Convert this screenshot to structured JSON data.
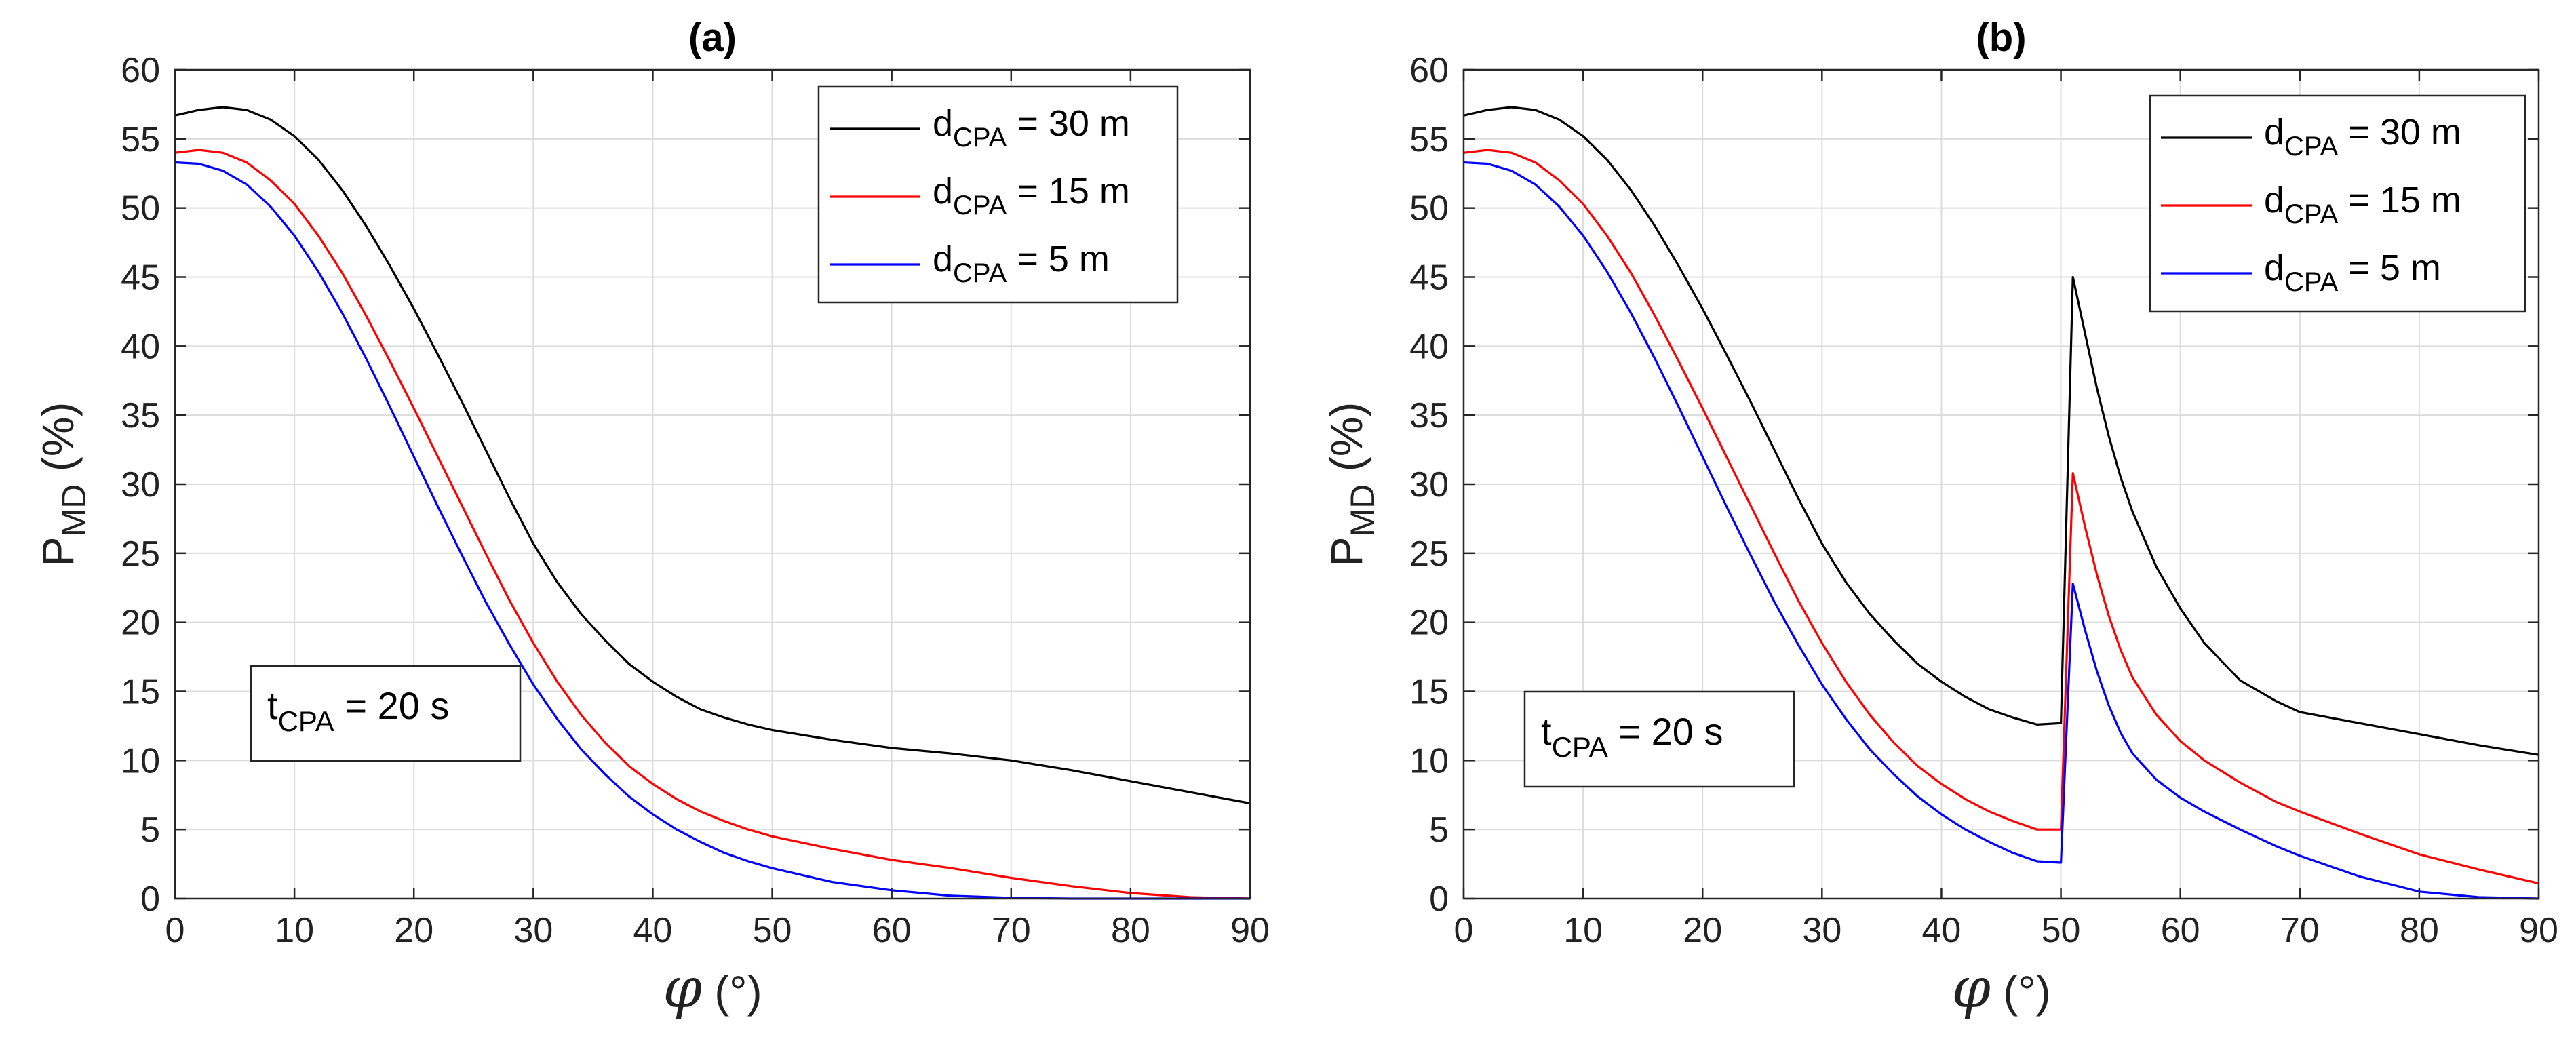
{
  "chart_data": [
    {
      "type": "line",
      "panel": "(a)",
      "title": "(a)",
      "xlabel_symbol": "φ",
      "xlabel_unit": "(°)",
      "ylabel_main": "P",
      "ylabel_sub": "MD",
      "ylabel_unit": "(%)",
      "xlim": [
        0,
        90
      ],
      "ylim": [
        0,
        60
      ],
      "xticks": [
        0,
        10,
        20,
        30,
        40,
        50,
        60,
        70,
        80,
        90
      ],
      "yticks": [
        0,
        5,
        10,
        15,
        20,
        25,
        30,
        35,
        40,
        45,
        50,
        55,
        60
      ],
      "grid": true,
      "legend_position": "top-right",
      "annotation": {
        "main": "t",
        "sub": "CPA",
        "rest": " = 20 s",
        "position": "lower-left"
      },
      "series": [
        {
          "name": "d_CPA = 30 m",
          "label_main": "d",
          "label_sub": "CPA",
          "label_rest": " = 30 m",
          "color": "#000000",
          "x": [
            0,
            2,
            4,
            6,
            8,
            10,
            12,
            14,
            16,
            18,
            20,
            22,
            24,
            26,
            28,
            30,
            32,
            34,
            36,
            38,
            40,
            42,
            44,
            46,
            48,
            50,
            55,
            60,
            65,
            70,
            75,
            80,
            85,
            90
          ],
          "y": [
            56.7,
            57.1,
            57.3,
            57.1,
            56.4,
            55.2,
            53.5,
            51.3,
            48.7,
            45.8,
            42.7,
            39.4,
            36.0,
            32.5,
            29.0,
            25.7,
            22.9,
            20.6,
            18.7,
            17.0,
            15.7,
            14.6,
            13.7,
            13.1,
            12.6,
            12.2,
            11.5,
            10.9,
            10.5,
            10.0,
            9.3,
            8.5,
            7.7,
            6.9
          ]
        },
        {
          "name": "d_CPA = 15 m",
          "label_main": "d",
          "label_sub": "CPA",
          "label_rest": " = 15 m",
          "color": "#ff0000",
          "x": [
            0,
            2,
            4,
            6,
            8,
            10,
            12,
            14,
            16,
            18,
            20,
            22,
            24,
            26,
            28,
            30,
            32,
            34,
            36,
            38,
            40,
            42,
            44,
            46,
            48,
            50,
            55,
            60,
            65,
            70,
            75,
            80,
            85,
            90
          ],
          "y": [
            54.0,
            54.2,
            54.0,
            53.3,
            52.0,
            50.3,
            48.0,
            45.3,
            42.2,
            38.9,
            35.5,
            32.0,
            28.5,
            25.0,
            21.6,
            18.5,
            15.7,
            13.3,
            11.3,
            9.6,
            8.3,
            7.2,
            6.3,
            5.6,
            5.0,
            4.5,
            3.6,
            2.8,
            2.2,
            1.5,
            0.9,
            0.4,
            0.1,
            0.0
          ]
        },
        {
          "name": "d_CPA = 5 m",
          "label_main": "d",
          "label_sub": "CPA",
          "label_rest": " = 5 m",
          "color": "#0000ff",
          "x": [
            0,
            2,
            4,
            6,
            8,
            10,
            12,
            14,
            16,
            18,
            20,
            22,
            24,
            26,
            28,
            30,
            32,
            34,
            36,
            38,
            40,
            42,
            44,
            46,
            48,
            50,
            55,
            60,
            65,
            70,
            75,
            80,
            85,
            90
          ],
          "y": [
            53.3,
            53.2,
            52.7,
            51.7,
            50.1,
            48.0,
            45.4,
            42.4,
            39.1,
            35.6,
            32.0,
            28.4,
            24.9,
            21.5,
            18.4,
            15.5,
            13.0,
            10.8,
            9.0,
            7.4,
            6.1,
            5.0,
            4.1,
            3.3,
            2.7,
            2.2,
            1.2,
            0.6,
            0.2,
            0.05,
            0.0,
            0.0,
            0.0,
            0.0
          ]
        }
      ]
    },
    {
      "type": "line",
      "panel": "(b)",
      "title": "(b)",
      "xlabel_symbol": "φ",
      "xlabel_unit": "(°)",
      "ylabel_main": "P",
      "ylabel_sub": "MD",
      "ylabel_unit": "(%)",
      "xlim": [
        0,
        90
      ],
      "ylim": [
        0,
        60
      ],
      "xticks": [
        0,
        10,
        20,
        30,
        40,
        50,
        60,
        70,
        80,
        90
      ],
      "yticks": [
        0,
        5,
        10,
        15,
        20,
        25,
        30,
        35,
        40,
        45,
        50,
        55,
        60
      ],
      "grid": true,
      "legend_position": "top-right",
      "annotation": {
        "main": "t",
        "sub": "CPA",
        "rest": " = 20 s",
        "position": "lower-left"
      },
      "series": [
        {
          "name": "d_CPA = 30 m",
          "label_main": "d",
          "label_sub": "CPA",
          "label_rest": " = 30 m",
          "color": "#000000",
          "x": [
            0,
            2,
            4,
            6,
            8,
            10,
            12,
            14,
            16,
            18,
            20,
            22,
            24,
            26,
            28,
            30,
            32,
            34,
            36,
            38,
            40,
            42,
            44,
            46,
            48,
            50,
            51,
            52,
            53,
            54,
            55,
            56,
            58,
            60,
            62,
            65,
            68,
            70,
            75,
            80,
            85,
            90
          ],
          "y": [
            56.7,
            57.1,
            57.3,
            57.1,
            56.4,
            55.2,
            53.5,
            51.3,
            48.7,
            45.8,
            42.7,
            39.4,
            36.0,
            32.5,
            29.0,
            25.7,
            22.9,
            20.6,
            18.7,
            17.0,
            15.7,
            14.6,
            13.7,
            13.1,
            12.6,
            12.7,
            45.0,
            41.0,
            37.0,
            33.5,
            30.5,
            28.0,
            24.0,
            21.0,
            18.5,
            15.8,
            14.3,
            13.5,
            12.7,
            11.9,
            11.1,
            10.4
          ]
        },
        {
          "name": "d_CPA = 15 m",
          "label_main": "d",
          "label_sub": "CPA",
          "label_rest": " = 15 m",
          "color": "#ff0000",
          "x": [
            0,
            2,
            4,
            6,
            8,
            10,
            12,
            14,
            16,
            18,
            20,
            22,
            24,
            26,
            28,
            30,
            32,
            34,
            36,
            38,
            40,
            42,
            44,
            46,
            48,
            50,
            51,
            52,
            53,
            54,
            55,
            56,
            58,
            60,
            62,
            65,
            68,
            70,
            75,
            80,
            85,
            90
          ],
          "y": [
            54.0,
            54.2,
            54.0,
            53.3,
            52.0,
            50.3,
            48.0,
            45.3,
            42.2,
            38.9,
            35.5,
            32.0,
            28.5,
            25.0,
            21.6,
            18.5,
            15.7,
            13.3,
            11.3,
            9.6,
            8.3,
            7.2,
            6.3,
            5.6,
            5.0,
            5.0,
            30.8,
            27.0,
            23.5,
            20.5,
            18.0,
            16.0,
            13.3,
            11.4,
            10.0,
            8.4,
            7.0,
            6.3,
            4.7,
            3.2,
            2.1,
            1.1
          ]
        },
        {
          "name": "d_CPA = 5 m",
          "label_main": "d",
          "label_sub": "CPA",
          "label_rest": " = 5 m",
          "color": "#0000ff",
          "x": [
            0,
            2,
            4,
            6,
            8,
            10,
            12,
            14,
            16,
            18,
            20,
            22,
            24,
            26,
            28,
            30,
            32,
            34,
            36,
            38,
            40,
            42,
            44,
            46,
            48,
            50,
            51,
            52,
            53,
            54,
            55,
            56,
            58,
            60,
            62,
            65,
            68,
            70,
            75,
            80,
            85,
            90
          ],
          "y": [
            53.3,
            53.2,
            52.7,
            51.7,
            50.1,
            48.0,
            45.4,
            42.4,
            39.1,
            35.6,
            32.0,
            28.4,
            24.9,
            21.5,
            18.4,
            15.5,
            13.0,
            10.8,
            9.0,
            7.4,
            6.1,
            5.0,
            4.1,
            3.3,
            2.7,
            2.6,
            22.8,
            19.5,
            16.5,
            14.0,
            12.0,
            10.5,
            8.6,
            7.3,
            6.3,
            5.0,
            3.8,
            3.1,
            1.6,
            0.5,
            0.1,
            0.0
          ]
        }
      ]
    }
  ]
}
